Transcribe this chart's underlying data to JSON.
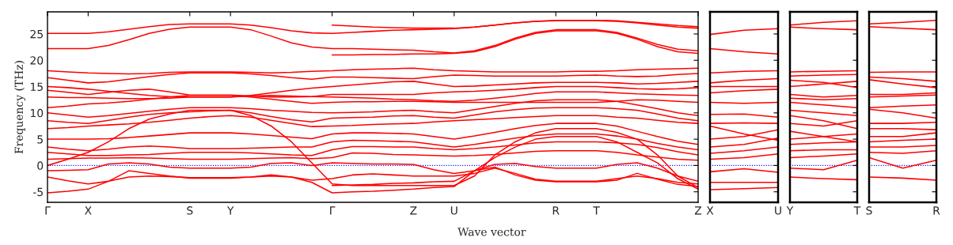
{
  "chart_data": [
    {
      "type": "line",
      "xlabel": "Wave vector",
      "ylabel": "Frequency (THz)",
      "ylim": [
        -7,
        29.2
      ],
      "yticks": [
        -5,
        0,
        5,
        10,
        15,
        20,
        25
      ],
      "categories": [
        "Γ",
        null,
        "X",
        null,
        null,
        null,
        null,
        "S",
        null,
        "Y",
        null,
        null,
        null,
        null,
        "Γ",
        null,
        null,
        null,
        "Z",
        null,
        "U",
        null,
        null,
        null,
        null,
        "R",
        null,
        "T",
        null,
        null,
        null,
        null,
        "Z"
      ],
      "grid": false,
      "marker": "none",
      "line_style": "solid",
      "ref_lines": [
        {
          "axis": "y",
          "value": 0,
          "color": "#0000ff",
          "line_style": "dotted"
        }
      ],
      "series": [
        {
          "color": "#ff0000",
          "values": [
            null,
            null,
            null,
            null,
            null,
            null,
            null,
            null,
            null,
            null,
            null,
            null,
            null,
            null,
            26.7,
            26.5,
            26.3,
            26.2,
            26.1,
            26.1,
            26.1,
            26.3,
            26.7,
            27.1,
            27.4,
            27.6,
            27.6,
            27.6,
            27.5,
            27.2,
            26.9,
            26.6,
            26.4
          ]
        },
        {
          "color": "#ff0000",
          "values": [
            25.1,
            25.1,
            25.1,
            25.4,
            25.9,
            26.4,
            26.8,
            26.9,
            26.9,
            26.9,
            26.7,
            26.2,
            25.6,
            25.2,
            25.1,
            25.3,
            25.5,
            25.7,
            25.8,
            25.9,
            26.0,
            26.3,
            26.7,
            27.1,
            27.4,
            27.5,
            27.5,
            27.5,
            27.4,
            27.1,
            26.7,
            26.3,
            26.1
          ]
        },
        {
          "color": "#ff0000",
          "values": [
            22.2,
            22.2,
            22.2,
            22.8,
            23.9,
            25.1,
            25.9,
            26.3,
            26.3,
            26.3,
            25.8,
            24.6,
            23.3,
            22.5,
            22.2,
            22.2,
            22.1,
            22.0,
            21.9,
            21.6,
            21.4,
            21.8,
            22.8,
            24.2,
            25.3,
            25.8,
            25.8,
            25.8,
            25.3,
            24.2,
            23.0,
            22.1,
            21.8
          ]
        },
        {
          "color": "#ff0000",
          "values": [
            null,
            null,
            null,
            null,
            null,
            null,
            null,
            null,
            null,
            null,
            null,
            null,
            null,
            null,
            21.0,
            21.0,
            21.1,
            21.1,
            21.2,
            21.2,
            21.3,
            21.6,
            22.6,
            24.0,
            25.1,
            25.6,
            25.6,
            25.6,
            25.1,
            24.0,
            22.6,
            21.6,
            21.3
          ]
        },
        {
          "color": "#ff0000",
          "values": [
            18.0,
            17.8,
            17.6,
            17.5,
            17.4,
            17.5,
            17.7,
            17.8,
            17.8,
            17.8,
            17.7,
            17.6,
            17.7,
            17.9,
            18.0,
            18.2,
            18.3,
            18.4,
            18.5,
            18.2,
            18.0,
            17.9,
            17.8,
            17.8,
            17.8,
            17.8,
            17.9,
            17.9,
            18.0,
            18.2,
            18.3,
            18.4,
            18.5
          ]
        },
        {
          "color": "#ff0000",
          "values": [
            16.7,
            16.2,
            15.7,
            15.9,
            16.4,
            16.9,
            17.3,
            17.6,
            17.6,
            17.6,
            17.4,
            17.1,
            16.7,
            16.4,
            16.8,
            16.8,
            16.7,
            16.6,
            16.5,
            16.9,
            17.2,
            17.1,
            17.0,
            17.0,
            17.0,
            17.0,
            17.1,
            17.2,
            17.0,
            16.9,
            17.0,
            17.3,
            17.5
          ]
        },
        {
          "color": "#ff0000",
          "values": [
            15.0,
            14.8,
            14.5,
            14.1,
            13.7,
            13.3,
            13.1,
            13.0,
            13.0,
            13.0,
            13.3,
            13.8,
            14.3,
            14.7,
            15.0,
            15.3,
            15.6,
            15.9,
            16.0,
            15.5,
            15.0,
            15.1,
            15.3,
            15.5,
            15.7,
            15.8,
            15.8,
            15.8,
            15.7,
            15.5,
            15.6,
            15.8,
            16.0
          ]
        },
        {
          "color": "#ff0000",
          "values": [
            14.3,
            13.9,
            13.5,
            13.9,
            14.3,
            14.5,
            14.0,
            13.4,
            13.4,
            13.4,
            13.2,
            13.0,
            13.0,
            13.1,
            13.5,
            13.5,
            13.5,
            13.5,
            13.5,
            13.8,
            14.0,
            14.1,
            14.3,
            14.5,
            14.8,
            15.0,
            15.0,
            15.0,
            14.8,
            14.6,
            14.5,
            14.6,
            14.8
          ]
        },
        {
          "color": "#ff0000",
          "values": [
            13.0,
            12.9,
            12.9,
            12.8,
            12.7,
            12.7,
            12.8,
            13.0,
            13.0,
            13.0,
            13.2,
            13.3,
            13.2,
            13.1,
            13.0,
            12.9,
            12.8,
            12.6,
            12.5,
            12.3,
            12.2,
            12.4,
            12.8,
            13.2,
            13.7,
            14.0,
            14.0,
            14.0,
            13.8,
            13.6,
            13.5,
            13.4,
            13.3
          ]
        },
        {
          "color": "#ff0000",
          "values": [
            11.0,
            11.3,
            11.7,
            11.9,
            12.2,
            12.6,
            13.0,
            13.3,
            13.3,
            13.3,
            13.0,
            12.6,
            12.2,
            11.8,
            12.0,
            12.1,
            12.1,
            12.2,
            12.2,
            12.1,
            12.0,
            12.0,
            12.0,
            12.0,
            12.0,
            12.0,
            12.0,
            12.0,
            12.2,
            12.5,
            12.4,
            12.2,
            12.0
          ]
        },
        {
          "color": "#ff0000",
          "values": [
            10.0,
            9.6,
            9.2,
            9.5,
            9.9,
            10.3,
            10.7,
            11.0,
            11.0,
            11.0,
            10.8,
            10.5,
            10.3,
            10.1,
            10.0,
            10.1,
            10.2,
            10.4,
            10.5,
            10.2,
            10.0,
            10.6,
            11.2,
            11.8,
            12.3,
            12.5,
            12.5,
            12.5,
            12.2,
            11.5,
            10.8,
            10.0,
            9.5
          ]
        },
        {
          "color": "#ff0000",
          "values": [
            8.5,
            8.2,
            8.0,
            8.6,
            9.2,
            9.7,
            10.0,
            10.2,
            10.4,
            10.5,
            10.0,
            9.3,
            8.7,
            8.3,
            9.0,
            9.1,
            9.2,
            9.4,
            9.5,
            9.2,
            9.0,
            9.6,
            10.2,
            10.6,
            10.9,
            11.0,
            11.0,
            11.0,
            10.8,
            10.5,
            9.8,
            9.0,
            8.5
          ]
        },
        {
          "color": "#ff0000",
          "values": [
            7.0,
            7.2,
            7.5,
            7.7,
            7.9,
            8.2,
            8.6,
            9.0,
            9.3,
            9.5,
            9.2,
            8.6,
            8.0,
            7.4,
            7.5,
            7.6,
            7.8,
            7.9,
            8.0,
            8.3,
            8.5,
            8.7,
            8.9,
            9.1,
            9.3,
            9.5,
            9.5,
            9.5,
            9.2,
            9.0,
            8.6,
            8.2,
            8.0
          ]
        },
        {
          "color": "#ff0000",
          "values": [
            5.0,
            5.0,
            5.0,
            5.1,
            5.3,
            5.6,
            5.9,
            6.2,
            6.2,
            6.2,
            6.0,
            5.7,
            5.4,
            5.1,
            6.0,
            6.2,
            6.2,
            6.1,
            6.0,
            5.5,
            5.0,
            5.6,
            6.3,
            7.0,
            7.6,
            8.0,
            8.0,
            8.0,
            7.5,
            6.5,
            5.5,
            4.6,
            4.0
          ]
        },
        {
          "color": "#ff0000",
          "values": [
            3.5,
            3.1,
            2.8,
            3.1,
            3.5,
            3.7,
            3.5,
            3.2,
            3.2,
            3.2,
            3.3,
            3.4,
            3.5,
            3.5,
            4.5,
            4.8,
            4.7,
            4.6,
            4.5,
            4.0,
            3.5,
            4.0,
            4.6,
            5.2,
            5.7,
            6.0,
            6.0,
            6.0,
            5.6,
            5.0,
            4.2,
            3.5,
            3.0
          ]
        },
        {
          "color": "#ff0000",
          "values": [
            2.5,
            2.2,
            1.9,
            1.9,
            2.0,
            2.1,
            2.3,
            2.5,
            2.5,
            2.5,
            2.4,
            2.2,
            2.0,
            1.9,
            3.0,
            3.6,
            3.6,
            3.5,
            3.5,
            3.2,
            3.0,
            3.2,
            3.5,
            3.9,
            4.3,
            4.5,
            4.5,
            4.5,
            4.3,
            4.0,
            3.4,
            2.6,
            2.0
          ]
        },
        {
          "color": "#ff0000",
          "values": [
            1.2,
            1.3,
            1.4,
            1.4,
            1.5,
            1.4,
            1.3,
            1.2,
            1.2,
            1.2,
            1.3,
            1.4,
            1.5,
            1.3,
            1.5,
            2.4,
            2.3,
            2.1,
            2.0,
            1.9,
            1.8,
            1.9,
            2.1,
            2.4,
            2.7,
            2.8,
            2.8,
            2.8,
            2.5,
            2.0,
            1.6,
            1.2,
            1.0
          ]
        },
        {
          "color": "#ff0000",
          "values": [
            0,
            1.2,
            2.5,
            4.5,
            7.0,
            8.8,
            9.8,
            10.5,
            10.5,
            10.5,
            9.5,
            7.5,
            4.5,
            0.5,
            -3.5,
            -3.8,
            -3.8,
            -3.8,
            -3.8,
            -3.8,
            -3.8,
            -2.0,
            2.0,
            4.5,
            6.2,
            7.0,
            7.0,
            7.0,
            6.3,
            5.0,
            2.0,
            -2.0,
            -4.2
          ]
        },
        {
          "color": "#ff0000",
          "values": [
            -1.0,
            -0.9,
            -0.8,
            0.3,
            0.5,
            0.3,
            -0.3,
            -0.5,
            -0.5,
            -0.5,
            -0.3,
            0.4,
            0.5,
            0.0,
            0.5,
            0.4,
            0.3,
            0.3,
            0.2,
            -0.8,
            -1.5,
            -1.0,
            0.2,
            0.4,
            -0.2,
            -0.5,
            -0.5,
            -0.5,
            0.2,
            0.5,
            -0.5,
            -2.0,
            -3.0
          ]
        },
        {
          "color": "#ff0000",
          "values": [
            -2.2,
            -2.9,
            -3.5,
            -3.0,
            -2.2,
            -2.0,
            -2.1,
            -2.3,
            -2.3,
            -2.3,
            -2.2,
            -2.0,
            -2.2,
            -2.8,
            -2.5,
            -1.8,
            -1.6,
            -1.8,
            -2.0,
            -2.0,
            -2.0,
            -1.5,
            -0.5,
            -1.5,
            -2.6,
            -3.0,
            -3.0,
            -3.0,
            -2.5,
            -2.0,
            -2.5,
            -3.2,
            -3.5
          ]
        },
        {
          "color": "#ff0000",
          "values": [
            -5.2,
            -4.9,
            -4.5,
            -3.0,
            -1.0,
            -1.5,
            -2.0,
            -2.4,
            -2.4,
            -2.4,
            -2.2,
            -1.8,
            -2.2,
            -3.2,
            -5.2,
            -5.0,
            -4.9,
            -4.7,
            -4.5,
            -4.2,
            -4.0,
            -1.0,
            -0.3,
            -1.8,
            -2.8,
            -3.1,
            -3.1,
            -3.1,
            -2.8,
            -1.5,
            -2.6,
            -3.6,
            -4.0
          ]
        },
        {
          "color": "#ff0000",
          "values": [
            null,
            null,
            null,
            null,
            null,
            null,
            null,
            null,
            null,
            null,
            null,
            null,
            null,
            null,
            -3.8,
            -3.7,
            -3.6,
            -3.4,
            -3.3,
            -3.1,
            -3.0,
            -1.0,
            1.5,
            3.5,
            5.0,
            5.5,
            5.5,
            5.5,
            4.5,
            2.5,
            0.5,
            -2.5,
            -4.5
          ]
        }
      ]
    },
    {
      "type": "line",
      "ylim": [
        -7,
        29.2
      ],
      "yticks": [
        -5,
        0,
        5,
        10,
        15,
        20,
        25
      ],
      "tick_labels": "x",
      "categories": [
        "X",
        null,
        "U"
      ],
      "grid": false,
      "marker": "none",
      "line_style": "solid",
      "ref_lines": [
        {
          "axis": "y",
          "value": 0,
          "color": "#0000ff",
          "line_style": "dotted"
        }
      ],
      "series": [
        {
          "color": "#ff0000",
          "values": [
            24.9,
            25.7,
            26.0
          ]
        },
        {
          "color": "#ff0000",
          "values": [
            22.2,
            21.6,
            21.2
          ]
        },
        {
          "color": "#ff0000",
          "values": [
            17.6,
            17.9,
            18.0
          ]
        },
        {
          "color": "#ff0000",
          "values": [
            15.7,
            16.2,
            16.5
          ]
        },
        {
          "color": "#ff0000",
          "values": [
            15.0,
            15.0,
            15.0
          ]
        },
        {
          "color": "#ff0000",
          "values": [
            13.8,
            14.2,
            14.5
          ]
        },
        {
          "color": "#ff0000",
          "values": [
            12.0,
            11.8,
            12.0
          ]
        },
        {
          "color": "#ff0000",
          "values": [
            9.7,
            9.8,
            9.2
          ]
        },
        {
          "color": "#ff0000",
          "values": [
            8.0,
            8.1,
            8.0
          ]
        },
        {
          "color": "#ff0000",
          "values": [
            7.5,
            6.0,
            4.8
          ]
        },
        {
          "color": "#ff0000",
          "values": [
            5.0,
            5.5,
            6.8
          ]
        },
        {
          "color": "#ff0000",
          "values": [
            3.5,
            4.0,
            5.2
          ]
        },
        {
          "color": "#ff0000",
          "values": [
            2.3,
            2.8,
            3.5
          ]
        },
        {
          "color": "#ff0000",
          "values": [
            1.2,
            1.5,
            2.2
          ]
        },
        {
          "color": "#ff0000",
          "values": [
            -1.2,
            -0.6,
            -1.3
          ]
        },
        {
          "color": "#ff0000",
          "values": [
            -3.2,
            -3.2,
            -3.2
          ]
        },
        {
          "color": "#ff0000",
          "values": [
            -4.6,
            -4.4,
            -4.2
          ]
        }
      ]
    },
    {
      "type": "line",
      "ylim": [
        -7,
        29.2
      ],
      "yticks": [
        -5,
        0,
        5,
        10,
        15,
        20,
        25
      ],
      "tick_labels": "x",
      "categories": [
        "Y",
        null,
        "T"
      ],
      "grid": false,
      "marker": "none",
      "line_style": "solid",
      "ref_lines": [
        {
          "axis": "y",
          "value": 0,
          "color": "#0000ff",
          "line_style": "dotted"
        }
      ],
      "series": [
        {
          "color": "#ff0000",
          "values": [
            26.7,
            27.2,
            27.5
          ]
        },
        {
          "color": "#ff0000",
          "values": [
            26.3,
            26.0,
            25.8
          ]
        },
        {
          "color": "#ff0000",
          "values": [
            17.8,
            17.9,
            18.0
          ]
        },
        {
          "color": "#ff0000",
          "values": [
            17.0,
            17.2,
            17.3
          ]
        },
        {
          "color": "#ff0000",
          "values": [
            16.2,
            15.8,
            14.8
          ]
        },
        {
          "color": "#ff0000",
          "values": [
            15.0,
            15.5,
            16.0
          ]
        },
        {
          "color": "#ff0000",
          "values": [
            13.5,
            13.0,
            13.3
          ]
        },
        {
          "color": "#ff0000",
          "values": [
            12.8,
            12.5,
            12.7
          ]
        },
        {
          "color": "#ff0000",
          "values": [
            12.0,
            11.5,
            11.0
          ]
        },
        {
          "color": "#ff0000",
          "values": [
            10.5,
            10.0,
            9.5
          ]
        },
        {
          "color": "#ff0000",
          "values": [
            9.5,
            8.5,
            7.0
          ]
        },
        {
          "color": "#ff0000",
          "values": [
            8.0,
            7.5,
            8.5
          ]
        },
        {
          "color": "#ff0000",
          "values": [
            6.5,
            5.5,
            4.5
          ]
        },
        {
          "color": "#ff0000",
          "values": [
            5.0,
            5.5,
            6.0
          ]
        },
        {
          "color": "#ff0000",
          "values": [
            4.0,
            4.3,
            4.5
          ]
        },
        {
          "color": "#ff0000",
          "values": [
            2.8,
            3.0,
            3.0
          ]
        },
        {
          "color": "#ff0000",
          "values": [
            1.5,
            1.8,
            2.2
          ]
        },
        {
          "color": "#ff0000",
          "values": [
            -0.5,
            -0.8,
            1.0
          ]
        },
        {
          "color": "#ff0000",
          "values": [
            -2.2,
            -2.5,
            -2.7
          ]
        }
      ]
    },
    {
      "type": "line",
      "ylim": [
        -7,
        29.2
      ],
      "yticks": [
        -5,
        0,
        5,
        10,
        15,
        20,
        25
      ],
      "tick_labels": "x",
      "categories": [
        "S",
        null,
        "R"
      ],
      "grid": false,
      "marker": "none",
      "line_style": "solid",
      "ref_lines": [
        {
          "axis": "y",
          "value": 0,
          "color": "#0000ff",
          "line_style": "dotted"
        }
      ],
      "series": [
        {
          "color": "#ff0000",
          "values": [
            26.9,
            27.2,
            27.6
          ]
        },
        {
          "color": "#ff0000",
          "values": [
            26.4,
            26.1,
            25.8
          ]
        },
        {
          "color": "#ff0000",
          "values": [
            17.7,
            17.8,
            17.8
          ]
        },
        {
          "color": "#ff0000",
          "values": [
            16.8,
            16.5,
            16.0
          ]
        },
        {
          "color": "#ff0000",
          "values": [
            16.3,
            15.5,
            14.8
          ]
        },
        {
          "color": "#ff0000",
          "values": [
            13.5,
            13.5,
            13.8
          ]
        },
        {
          "color": "#ff0000",
          "values": [
            13.0,
            13.2,
            13.4
          ]
        },
        {
          "color": "#ff0000",
          "values": [
            11.0,
            11.3,
            11.5
          ]
        },
        {
          "color": "#ff0000",
          "values": [
            10.7,
            10.0,
            9.0
          ]
        },
        {
          "color": "#ff0000",
          "values": [
            8.0,
            8.0,
            8.2
          ]
        },
        {
          "color": "#ff0000",
          "values": [
            7.0,
            7.0,
            6.8
          ]
        },
        {
          "color": "#ff0000",
          "values": [
            5.5,
            5.5,
            6.2
          ]
        },
        {
          "color": "#ff0000",
          "values": [
            4.5,
            4.8,
            5.0
          ]
        },
        {
          "color": "#ff0000",
          "values": [
            3.5,
            3.5,
            3.8
          ]
        },
        {
          "color": "#ff0000",
          "values": [
            2.5,
            2.3,
            2.8
          ]
        },
        {
          "color": "#ff0000",
          "values": [
            1.5,
            -0.5,
            1.0
          ]
        },
        {
          "color": "#ff0000",
          "values": [
            -2.2,
            -2.4,
            -2.8
          ]
        }
      ]
    }
  ]
}
